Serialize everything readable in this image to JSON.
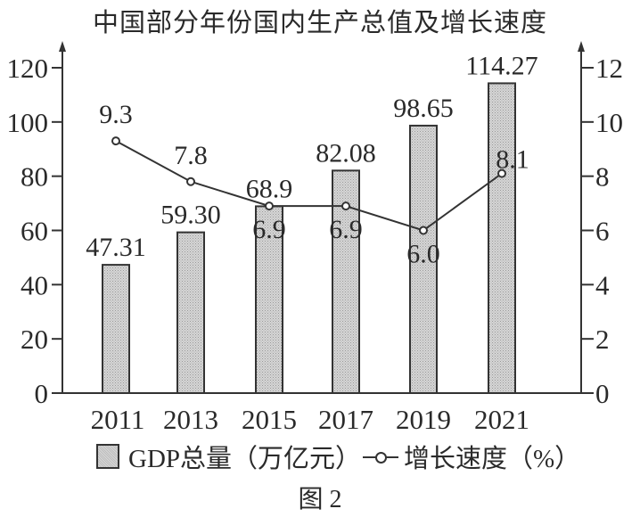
{
  "title": "中国部分年份国内生产总值及增长速度",
  "caption": "图 2",
  "legend": {
    "bar_label": "GDP总量（万亿元）",
    "line_label": "增长速度（%）"
  },
  "colors": {
    "axis": "#333333",
    "bar_fill": "#c8c8c8",
    "bar_stroke": "#333333",
    "line": "#333333",
    "text": "#2a2a2a"
  },
  "chart_data": {
    "type": "bar",
    "title": "中国部分年份国内生产总值及增长速度",
    "categories": [
      "2011",
      "2013",
      "2015",
      "2017",
      "2019",
      "2021"
    ],
    "series": [
      {
        "name": "GDP总量（万亿元）",
        "type": "bar",
        "axis": "left",
        "values": [
          47.31,
          59.3,
          68.9,
          82.08,
          98.65,
          114.27
        ],
        "labels": [
          "47.31",
          "59.30",
          "68.9",
          "82.08",
          "98.65",
          "114.27"
        ]
      },
      {
        "name": "增长速度（%）",
        "type": "line",
        "axis": "right",
        "values": [
          9.3,
          7.8,
          6.9,
          6.9,
          6.0,
          8.1
        ],
        "labels": [
          "9.3",
          "7.8",
          "6.9",
          "6.9",
          "6.0",
          "8.1"
        ]
      }
    ],
    "left_axis": {
      "ylim": [
        0,
        120
      ],
      "ticks": [
        "0",
        "20",
        "40",
        "60",
        "80",
        "100",
        "120"
      ]
    },
    "right_axis": {
      "ylim": [
        0,
        12
      ],
      "ticks": [
        "0",
        "2",
        "4",
        "6",
        "8",
        "10",
        "12"
      ]
    },
    "xlabel": "",
    "ylabel": "",
    "grid": false,
    "legend_position": "bottom",
    "caption": "图 2"
  }
}
